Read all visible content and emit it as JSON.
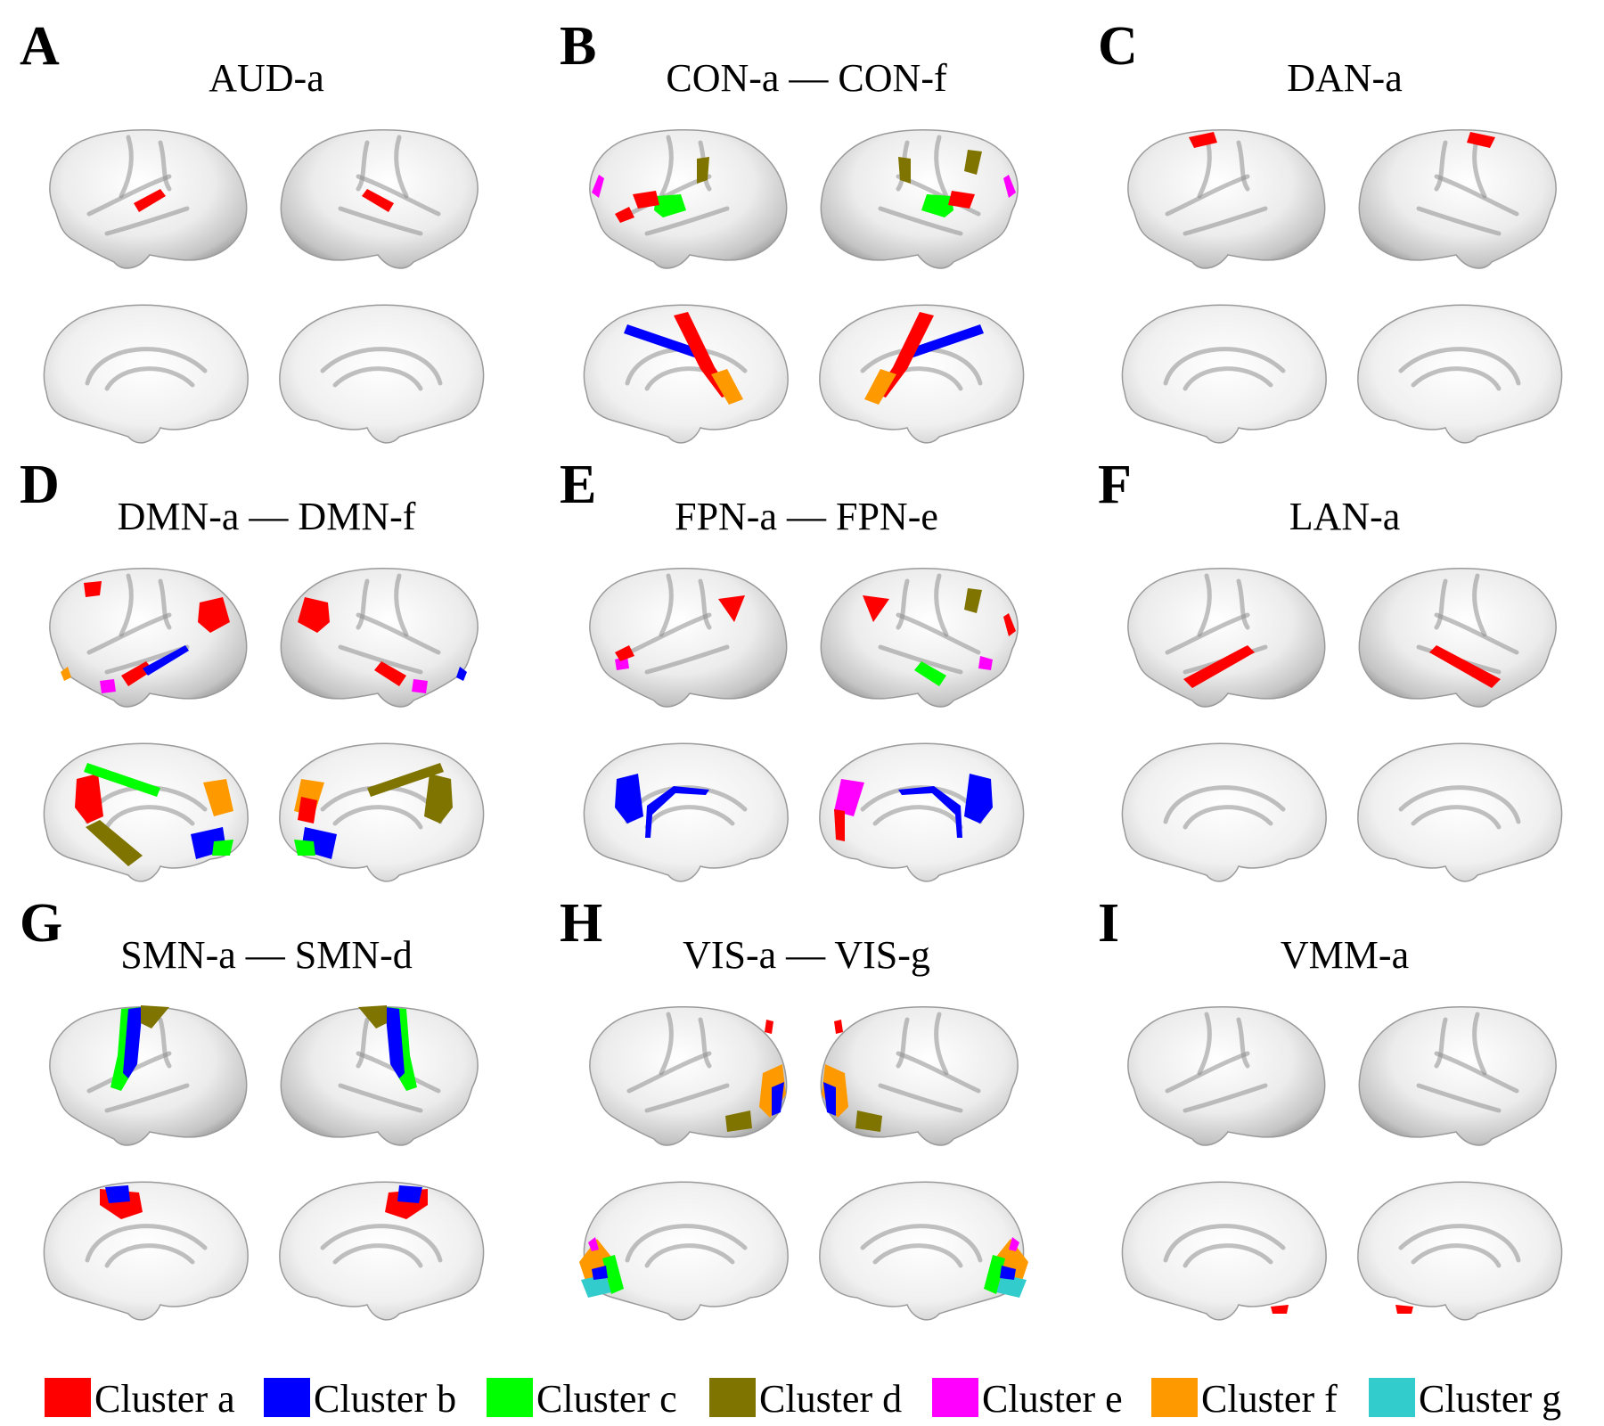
{
  "colors": {
    "a": "#ff0000",
    "b": "#0000ff",
    "c": "#00ff00",
    "d": "#807400",
    "e": "#ff00ff",
    "f": "#ff9900",
    "g": "#33cccc",
    "brain_light": "#ffffff",
    "brain_dark": "#8c8c8c"
  },
  "panels": [
    {
      "letter": "A",
      "title": "AUD-a",
      "regions": [
        {
          "view": "LL",
          "cluster": "a",
          "shape": "strip",
          "at": "sylvian"
        },
        {
          "view": "RL",
          "cluster": "a",
          "shape": "strip",
          "at": "sylvian"
        }
      ]
    },
    {
      "letter": "B",
      "title": "CON-a — CON-f",
      "regions": [
        {
          "view": "LL",
          "cluster": "c",
          "shape": "blob",
          "at": "insula"
        },
        {
          "view": "LL",
          "cluster": "a",
          "shape": "blob",
          "at": "frontoperc"
        },
        {
          "view": "LL",
          "cluster": "d",
          "shape": "blob",
          "at": "supramarg"
        },
        {
          "view": "LL",
          "cluster": "e",
          "shape": "blob",
          "at": "antfront"
        },
        {
          "view": "LL",
          "cluster": "a",
          "shape": "blob",
          "at": "antfront_low"
        },
        {
          "view": "RL",
          "cluster": "c",
          "shape": "blob",
          "at": "insula"
        },
        {
          "view": "RL",
          "cluster": "a",
          "shape": "blob",
          "at": "frontoperc"
        },
        {
          "view": "RL",
          "cluster": "d",
          "shape": "blob",
          "at": "supramarg"
        },
        {
          "view": "RL",
          "cluster": "d",
          "shape": "blob",
          "at": "midfront"
        },
        {
          "view": "RL",
          "cluster": "e",
          "shape": "blob",
          "at": "antfront"
        },
        {
          "view": "LM",
          "cluster": "b",
          "shape": "strip",
          "at": "cingulate"
        },
        {
          "view": "LM",
          "cluster": "a",
          "shape": "strip",
          "at": "paracentral_diag"
        },
        {
          "view": "LM",
          "cluster": "f",
          "shape": "blob",
          "at": "cing_low"
        },
        {
          "view": "RM",
          "cluster": "b",
          "shape": "strip",
          "at": "cingulate"
        },
        {
          "view": "RM",
          "cluster": "a",
          "shape": "strip",
          "at": "paracentral_diag"
        },
        {
          "view": "RM",
          "cluster": "f",
          "shape": "blob",
          "at": "cing_low"
        }
      ]
    },
    {
      "letter": "C",
      "title": "DAN-a",
      "regions": [
        {
          "view": "LL",
          "cluster": "a",
          "shape": "blob",
          "at": "fef"
        },
        {
          "view": "RL",
          "cluster": "a",
          "shape": "blob",
          "at": "fef"
        }
      ]
    },
    {
      "letter": "D",
      "title": "DMN-a — DMN-f",
      "regions": [
        {
          "view": "LL",
          "cluster": "a",
          "shape": "blob",
          "at": "angular"
        },
        {
          "view": "LL",
          "cluster": "a",
          "shape": "blob",
          "at": "dlpfc"
        },
        {
          "view": "LL",
          "cluster": "a",
          "shape": "blob",
          "at": "temporal"
        },
        {
          "view": "LL",
          "cluster": "b",
          "shape": "strip",
          "at": "sts"
        },
        {
          "view": "LL",
          "cluster": "e",
          "shape": "blob",
          "at": "temppole"
        },
        {
          "view": "LL",
          "cluster": "f",
          "shape": "blob",
          "at": "orbit"
        },
        {
          "view": "RL",
          "cluster": "a",
          "shape": "blob",
          "at": "angular"
        },
        {
          "view": "RL",
          "cluster": "a",
          "shape": "blob",
          "at": "temporal"
        },
        {
          "view": "RL",
          "cluster": "e",
          "shape": "blob",
          "at": "temppole"
        },
        {
          "view": "RL",
          "cluster": "b",
          "shape": "blob",
          "at": "orbit"
        },
        {
          "view": "LM",
          "cluster": "a",
          "shape": "blob",
          "at": "precuneus"
        },
        {
          "view": "LM",
          "cluster": "c",
          "shape": "strip",
          "at": "cingulate"
        },
        {
          "view": "LM",
          "cluster": "d",
          "shape": "blob",
          "at": "parahippo"
        },
        {
          "view": "LM",
          "cluster": "f",
          "shape": "blob",
          "at": "mpfc"
        },
        {
          "view": "LM",
          "cluster": "b",
          "shape": "blob",
          "at": "vmpfc"
        },
        {
          "view": "LM",
          "cluster": "c",
          "shape": "blob",
          "at": "subgenual"
        },
        {
          "view": "RM",
          "cluster": "f",
          "shape": "blob",
          "at": "mpfc"
        },
        {
          "view": "RM",
          "cluster": "b",
          "shape": "blob",
          "at": "vmpfc"
        },
        {
          "view": "RM",
          "cluster": "c",
          "shape": "blob",
          "at": "subgenual"
        },
        {
          "view": "RM",
          "cluster": "d",
          "shape": "strip",
          "at": "cingulate"
        },
        {
          "view": "RM",
          "cluster": "d",
          "shape": "blob",
          "at": "precuneus"
        },
        {
          "view": "RM",
          "cluster": "a",
          "shape": "blob",
          "at": "precuneus_low"
        }
      ]
    },
    {
      "letter": "E",
      "title": "FPN-a — FPN-e",
      "regions": [
        {
          "view": "LL",
          "cluster": "a",
          "shape": "blob",
          "at": "ipl"
        },
        {
          "view": "LL",
          "cluster": "e",
          "shape": "blob",
          "at": "vlpfc"
        },
        {
          "view": "LL",
          "cluster": "a",
          "shape": "blob",
          "at": "antfront_low"
        },
        {
          "view": "RL",
          "cluster": "a",
          "shape": "blob",
          "at": "ipl"
        },
        {
          "view": "RL",
          "cluster": "d",
          "shape": "blob",
          "at": "midfront"
        },
        {
          "view": "RL",
          "cluster": "e",
          "shape": "blob",
          "at": "vlpfc"
        },
        {
          "view": "RL",
          "cluster": "c",
          "shape": "blob",
          "at": "temporal"
        },
        {
          "view": "RL",
          "cluster": "a",
          "shape": "blob",
          "at": "antfront"
        },
        {
          "view": "LM",
          "cluster": "b",
          "shape": "blob",
          "at": "precuneus"
        },
        {
          "view": "LM",
          "cluster": "b",
          "shape": "strip",
          "at": "cing_arc"
        },
        {
          "view": "RM",
          "cluster": "b",
          "shape": "blob",
          "at": "precuneus"
        },
        {
          "view": "RM",
          "cluster": "b",
          "shape": "strip",
          "at": "cing_arc"
        },
        {
          "view": "RM",
          "cluster": "e",
          "shape": "blob",
          "at": "mpfc"
        },
        {
          "view": "RM",
          "cluster": "a",
          "shape": "blob",
          "at": "mpfc_low"
        }
      ]
    },
    {
      "letter": "F",
      "title": "LAN-a",
      "regions": [
        {
          "view": "LL",
          "cluster": "a",
          "shape": "strip",
          "at": "sts_long"
        },
        {
          "view": "RL",
          "cluster": "a",
          "shape": "strip",
          "at": "sts_long"
        }
      ]
    },
    {
      "letter": "G",
      "title": "SMN-a — SMN-d",
      "regions": [
        {
          "view": "LL",
          "cluster": "c",
          "shape": "strip",
          "at": "central_wide"
        },
        {
          "view": "LL",
          "cluster": "b",
          "shape": "strip",
          "at": "central"
        },
        {
          "view": "LL",
          "cluster": "d",
          "shape": "blob",
          "at": "central_top"
        },
        {
          "view": "RL",
          "cluster": "c",
          "shape": "strip",
          "at": "central_wide"
        },
        {
          "view": "RL",
          "cluster": "b",
          "shape": "strip",
          "at": "central"
        },
        {
          "view": "RL",
          "cluster": "d",
          "shape": "blob",
          "at": "central_top"
        },
        {
          "view": "LM",
          "cluster": "a",
          "shape": "blob",
          "at": "paracentral"
        },
        {
          "view": "LM",
          "cluster": "b",
          "shape": "blob",
          "at": "paracentral_top"
        },
        {
          "view": "RM",
          "cluster": "a",
          "shape": "blob",
          "at": "paracentral"
        },
        {
          "view": "RM",
          "cluster": "b",
          "shape": "blob",
          "at": "paracentral_top"
        }
      ]
    },
    {
      "letter": "H",
      "title": "VIS-a — VIS-g",
      "regions": [
        {
          "view": "LL",
          "cluster": "a",
          "shape": "blob",
          "at": "occ_top"
        },
        {
          "view": "LL",
          "cluster": "f",
          "shape": "blob",
          "at": "occ"
        },
        {
          "view": "LL",
          "cluster": "b",
          "shape": "blob",
          "at": "occ_mid"
        },
        {
          "view": "LL",
          "cluster": "d",
          "shape": "blob",
          "at": "occ_low"
        },
        {
          "view": "RL",
          "cluster": "a",
          "shape": "blob",
          "at": "occ_top"
        },
        {
          "view": "RL",
          "cluster": "f",
          "shape": "blob",
          "at": "occ"
        },
        {
          "view": "RL",
          "cluster": "b",
          "shape": "blob",
          "at": "occ_mid"
        },
        {
          "view": "RL",
          "cluster": "d",
          "shape": "blob",
          "at": "occ_low"
        },
        {
          "view": "LM",
          "cluster": "f",
          "shape": "blob",
          "at": "occ_med"
        },
        {
          "view": "LM",
          "cluster": "g",
          "shape": "blob",
          "at": "occ_med_low"
        },
        {
          "view": "LM",
          "cluster": "c",
          "shape": "blob",
          "at": "occ_med_in"
        },
        {
          "view": "LM",
          "cluster": "e",
          "shape": "blob",
          "at": "occ_med_top"
        },
        {
          "view": "LM",
          "cluster": "b",
          "shape": "blob",
          "at": "occ_med_mid"
        },
        {
          "view": "RM",
          "cluster": "f",
          "shape": "blob",
          "at": "occ_med"
        },
        {
          "view": "RM",
          "cluster": "g",
          "shape": "blob",
          "at": "occ_med_low"
        },
        {
          "view": "RM",
          "cluster": "c",
          "shape": "blob",
          "at": "occ_med_in"
        },
        {
          "view": "RM",
          "cluster": "e",
          "shape": "blob",
          "at": "occ_med_top"
        },
        {
          "view": "RM",
          "cluster": "b",
          "shape": "blob",
          "at": "occ_med_mid"
        }
      ]
    },
    {
      "letter": "I",
      "title": "VMM-a",
      "regions": [
        {
          "view": "LM",
          "cluster": "a",
          "shape": "blob",
          "at": "vmpfc_tip"
        },
        {
          "view": "RM",
          "cluster": "a",
          "shape": "blob",
          "at": "vmpfc_tip"
        }
      ]
    }
  ],
  "legend": [
    {
      "key": "a",
      "label": "Cluster a"
    },
    {
      "key": "b",
      "label": "Cluster b"
    },
    {
      "key": "c",
      "label": "Cluster c"
    },
    {
      "key": "d",
      "label": "Cluster d"
    },
    {
      "key": "e",
      "label": "Cluster e"
    },
    {
      "key": "f",
      "label": "Cluster f"
    },
    {
      "key": "g",
      "label": "Cluster g"
    }
  ]
}
